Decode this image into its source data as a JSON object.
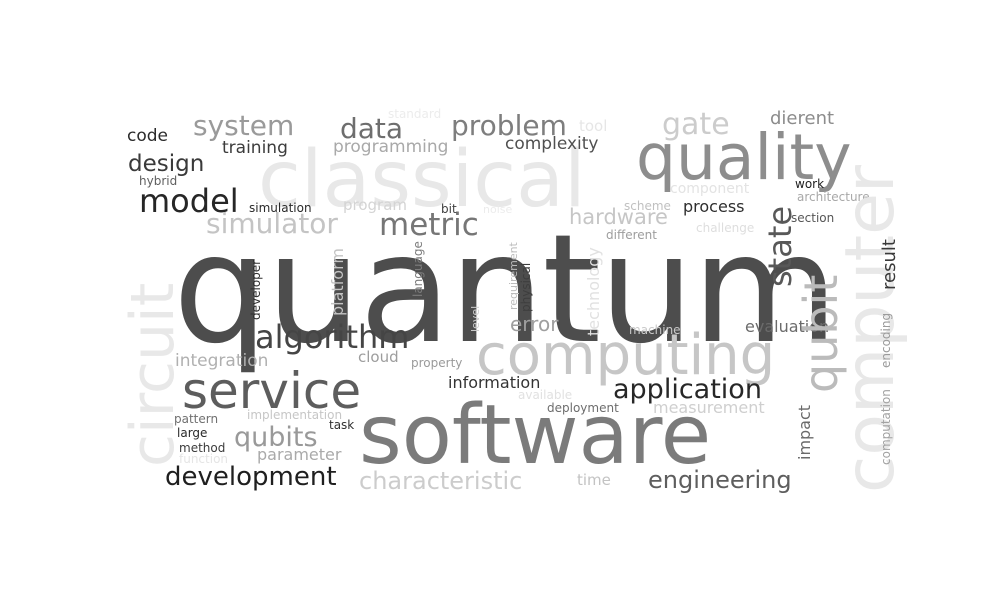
{
  "words": {
    "quantum": "quantum",
    "software": "software",
    "classical": "classical",
    "computing": "computing",
    "quality": "quality",
    "service": "service",
    "computer": "computer",
    "circuit": "circuit",
    "algorithm": "algorithm",
    "application": "application",
    "development": "development",
    "engineering": "engineering",
    "characteristic": "characteristic",
    "qubit": "qubit",
    "state": "state",
    "model": "model",
    "metric": "metric",
    "system": "system",
    "data": "data",
    "problem": "problem",
    "gate": "gate",
    "simulator": "simulator",
    "qubits": "qubits",
    "design": "design",
    "hardware": "hardware",
    "error": "error",
    "dierent": "dierent",
    "code": "code",
    "training": "training",
    "programming": "programming",
    "complexity": "complexity",
    "process": "process",
    "integration": "integration",
    "information": "information",
    "evaluation": "evaluation",
    "measurement": "measurement",
    "parameter": "parameter",
    "cloud": "cloud",
    "result": "result",
    "impact": "impact",
    "technology": "technology",
    "platform": "platform",
    "program": "program",
    "component": "component",
    "standard": "standard",
    "tool": "tool",
    "hybrid": "hybrid",
    "simulation": "simulation",
    "bit": "bit",
    "noise": "noise",
    "scheme": "scheme",
    "work": "work",
    "architecture": "architecture",
    "section": "section",
    "challenge": "challenge",
    "different": "different",
    "developer": "developer",
    "language": "language",
    "requirement": "requirement",
    "physical": "physical",
    "level": "level",
    "machine": "machine",
    "property": "property",
    "available": "available",
    "deployment": "deployment",
    "pattern": "pattern",
    "implementation": "implementation",
    "large": "large",
    "task": "task",
    "method": "method",
    "function": "function",
    "time": "time",
    "encoding": "encoding",
    "computation": "computation"
  }
}
